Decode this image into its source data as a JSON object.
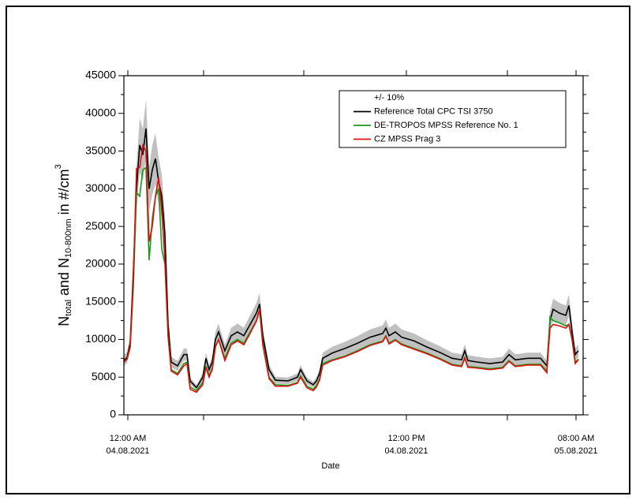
{
  "chart_data": {
    "type": "line",
    "ylabel_parts": [
      "N",
      "total",
      " and N",
      "10-800nm",
      " in #/cm",
      "3"
    ],
    "xlabel": "Date",
    "x": [
      0,
      1,
      2,
      3,
      4,
      5,
      6,
      7,
      8,
      9,
      10,
      11,
      12,
      13,
      14,
      15,
      17,
      19,
      20,
      21,
      23,
      25,
      26,
      27,
      28,
      29,
      30,
      32,
      34,
      36,
      38,
      40,
      42,
      43,
      44,
      46,
      48,
      52,
      55,
      56,
      58,
      60,
      61,
      62,
      63,
      66,
      70,
      74,
      78,
      82,
      83,
      84,
      86,
      88,
      92,
      96,
      100,
      104,
      107,
      108,
      109,
      112,
      116,
      120,
      122,
      124,
      128,
      132,
      134,
      135,
      136,
      138,
      140,
      141,
      142,
      143,
      144
    ],
    "series": [
      {
        "name": "+/- 10%",
        "color": "#c0c0c0",
        "band_percent": 10
      },
      {
        "name": "Reference Total CPC TSI 3750",
        "color": "#000000",
        "values": [
          7200,
          7600,
          9500,
          19000,
          30000,
          35800,
          34500,
          38000,
          30000,
          32500,
          34000,
          31000,
          29000,
          24000,
          12000,
          7000,
          6500,
          8000,
          8000,
          4500,
          3600,
          5000,
          7500,
          6000,
          7000,
          10000,
          11000,
          8500,
          10500,
          11000,
          10500,
          12000,
          13500,
          14700,
          10500,
          6000,
          4600,
          4500,
          5000,
          6000,
          4500,
          4000,
          4500,
          5500,
          7500,
          8200,
          8800,
          9500,
          10300,
          10800,
          11500,
          10500,
          11000,
          10300,
          9800,
          9000,
          8300,
          7500,
          7300,
          8500,
          7200,
          7000,
          6800,
          7000,
          8000,
          7300,
          7500,
          7500,
          6500,
          12500,
          14000,
          13500,
          13200,
          14500,
          11000,
          8000,
          8500
        ]
      },
      {
        "name": "DE-TROPOS MPSS Reference No. 1",
        "color": "#1a9a1a",
        "values": [
          7000,
          7400,
          9000,
          17000,
          29500,
          29000,
          32500,
          32800,
          20500,
          26000,
          29000,
          30000,
          22000,
          20000,
          10500,
          6000,
          5500,
          6800,
          7000,
          3700,
          3200,
          4300,
          6500,
          5200,
          6200,
          9000,
          10000,
          7500,
          9500,
          10000,
          9500,
          11000,
          12500,
          14000,
          9500,
          5000,
          4000,
          3900,
          4300,
          5200,
          3800,
          3400,
          3900,
          4800,
          6800,
          7300,
          7800,
          8500,
          9300,
          9800,
          10500,
          9500,
          10000,
          9400,
          8800,
          8200,
          7500,
          6700,
          6500,
          7600,
          6400,
          6300,
          6100,
          6300,
          7200,
          6500,
          6700,
          6700,
          5800,
          13000,
          12500,
          12200,
          11800,
          12000,
          10000,
          7000,
          7400
        ]
      },
      {
        "name": "CZ MPSS Prag 3",
        "color": "#e0100c",
        "values": [
          7000,
          7400,
          9000,
          18000,
          32700,
          32800,
          35800,
          35000,
          23000,
          25000,
          29000,
          31500,
          27000,
          20500,
          10500,
          5800,
          5300,
          6500,
          6800,
          3400,
          3000,
          4000,
          6300,
          5000,
          6000,
          9000,
          10000,
          7200,
          9300,
          9800,
          9300,
          10800,
          12500,
          14000,
          9300,
          4800,
          3800,
          3800,
          4200,
          5000,
          3600,
          3200,
          3700,
          4600,
          6600,
          7200,
          7700,
          8400,
          9200,
          9700,
          10400,
          9400,
          9900,
          9300,
          8700,
          8100,
          7400,
          6600,
          6400,
          7500,
          6300,
          6200,
          6000,
          6200,
          7100,
          6400,
          6600,
          6600,
          5600,
          11500,
          12000,
          11800,
          11500,
          12000,
          10000,
          6800,
          7300
        ]
      }
    ],
    "xlim": [
      0,
      145.5
    ],
    "xticks": [
      {
        "value": 1.25,
        "label": [
          "12:00 AM",
          "04.08.2021"
        ]
      },
      {
        "value": 25.25,
        "label": ""
      },
      {
        "value": 57,
        "label": ""
      },
      {
        "value": 89.5,
        "label": [
          "12:00 PM",
          "04.08.2021"
        ]
      },
      {
        "value": 121.5,
        "label": ""
      },
      {
        "value": 143.25,
        "label": [
          "08:00 AM",
          "05.08.2021"
        ]
      }
    ],
    "ylim": [
      0,
      45000
    ],
    "yticks": [
      0,
      5000,
      10000,
      15000,
      20000,
      25000,
      30000,
      35000,
      40000,
      45000
    ],
    "legend": "top-right",
    "grid": false
  }
}
